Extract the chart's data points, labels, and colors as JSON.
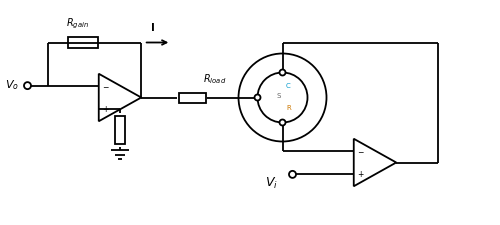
{
  "bg_color": "#ffffff",
  "line_color": "#000000",
  "text_color": "#000000",
  "cyan_color": "#0099aa",
  "gray_color": "#888888",
  "fig_width": 5.0,
  "fig_height": 2.25,
  "dpi": 100,
  "xlim": [
    0,
    10
  ],
  "ylim": [
    0,
    4.5
  ]
}
